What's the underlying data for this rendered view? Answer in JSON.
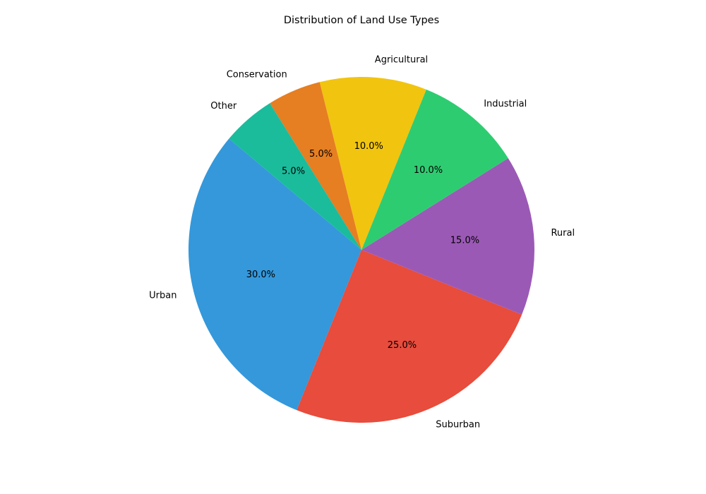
{
  "chart_data": {
    "type": "pie",
    "title": "Distribution of Land Use Types",
    "categories": [
      "Urban",
      "Suburban",
      "Rural",
      "Industrial",
      "Agricultural",
      "Conservation",
      "Other"
    ],
    "values": [
      30,
      25,
      15,
      10,
      10,
      5,
      5
    ],
    "value_labels": [
      "30.0%",
      "25.0%",
      "15.0%",
      "10.0%",
      "10.0%",
      "5.0%",
      "5.0%"
    ],
    "colors": [
      "#3498db",
      "#e74c3c",
      "#9b59b6",
      "#2ecc71",
      "#f1c40f",
      "#e67e22",
      "#1abc9c"
    ],
    "start_angle_deg": 140,
    "direction": "counterclockwise",
    "legend": "none"
  }
}
